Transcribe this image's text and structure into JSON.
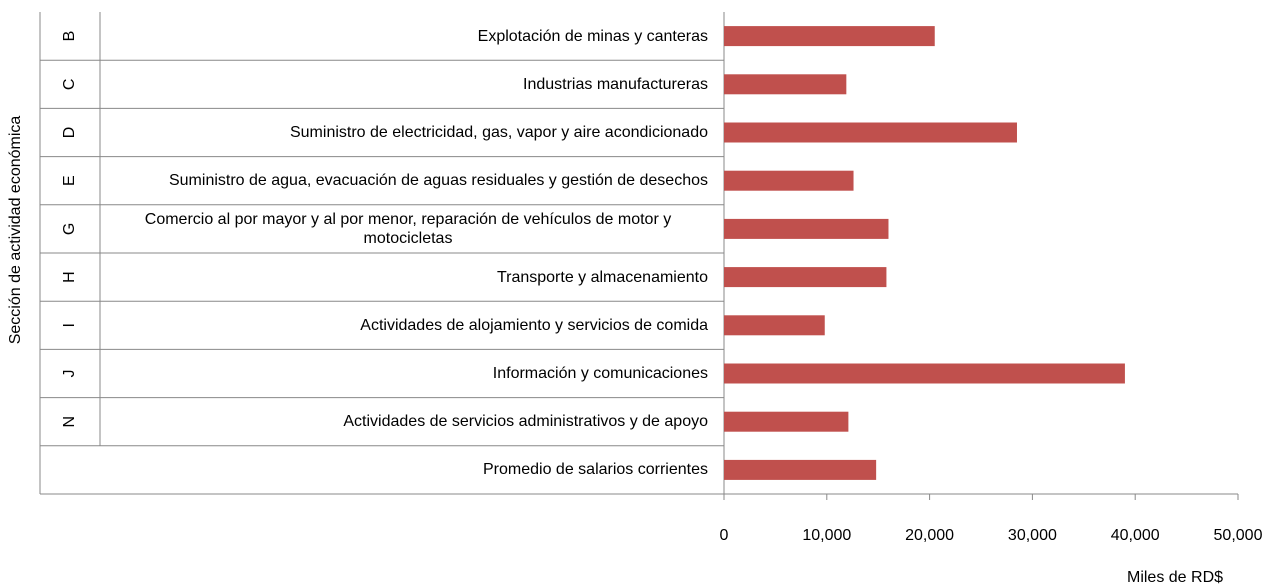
{
  "chart_data": {
    "type": "bar",
    "orientation": "horizontal",
    "xlabel": "Miles de RD$",
    "ylabel": "Sección de actividad económica",
    "categories": [
      "Explotación de minas y canteras",
      "Industrias manufactureras",
      "Suministro de electricidad, gas, vapor y aire acondicionado",
      "Suministro de agua, evacuación de aguas residuales y gestión de desechos",
      "Comercio al por mayor y al por menor, reparación de vehículos de motor y motocicletas",
      "Transporte y almacenamiento",
      "Actividades de alojamiento y servicios de comida",
      "Información y comunicaciones",
      "Actividades de servicios administrativos y de apoyo",
      "Promedio de salarios corrientes"
    ],
    "sections": [
      "B",
      "C",
      "D",
      "E",
      "G",
      "H",
      "I",
      "J",
      "N",
      null
    ],
    "values": [
      20500,
      11900,
      28500,
      12600,
      16000,
      15800,
      9800,
      39000,
      12100,
      14800
    ],
    "color": "#c0504d",
    "xlim": [
      0,
      50000
    ],
    "xticks": [
      0,
      {
        "value": 10000,
        "label": "10,000"
      },
      {
        "value": 20000,
        "label": "20,000"
      },
      {
        "value": 30000,
        "label": "30,000"
      },
      {
        "value": 40000,
        "label": "40,000"
      },
      {
        "value": 50000,
        "label": "50,000"
      }
    ],
    "grid": false
  }
}
